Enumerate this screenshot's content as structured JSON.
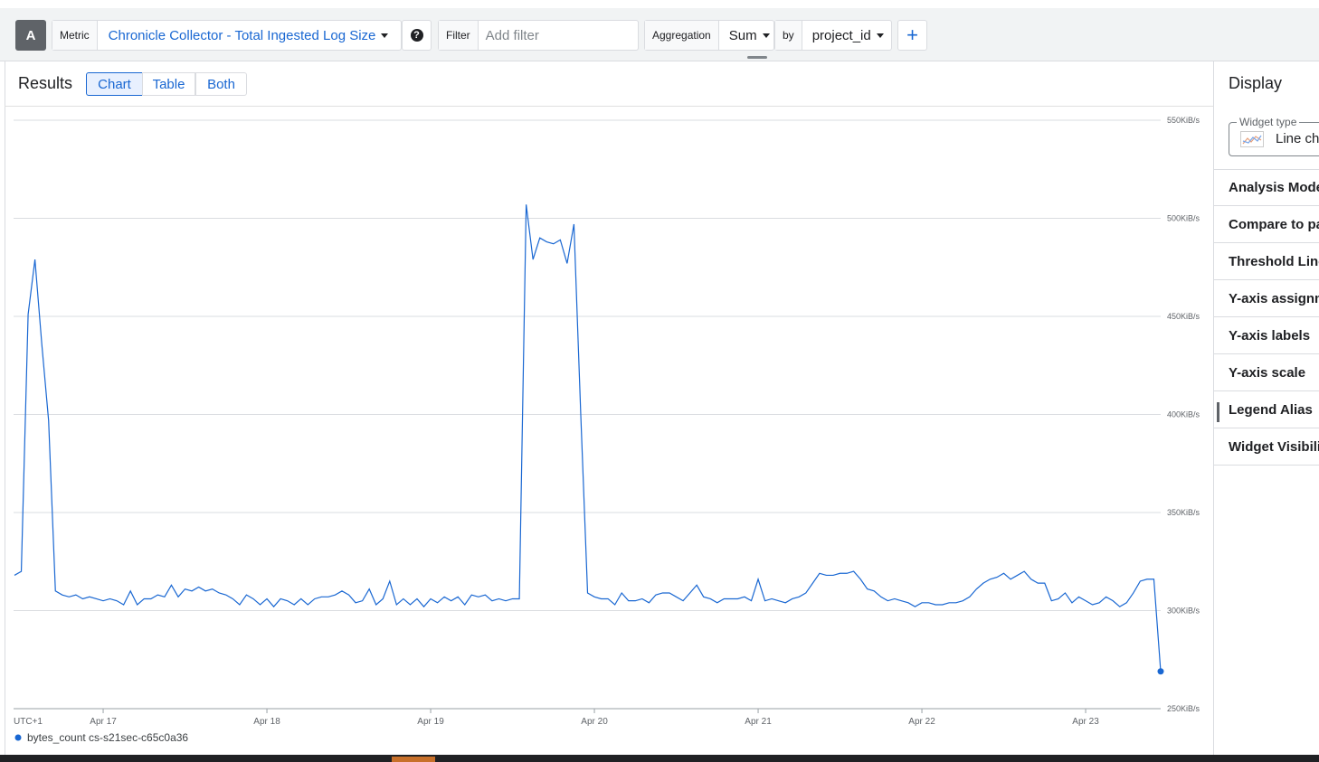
{
  "toolbar": {
    "query_label": "A",
    "metric_label": "Metric",
    "metric": "Chronicle Collector - Total Ingested Log Size",
    "filter_label": "Filter",
    "filter_placeholder": "Add filter",
    "aggregation_label": "Aggregation",
    "aggregation": "Sum",
    "by_label": "by",
    "group_by": "project_id"
  },
  "results": {
    "title": "Results",
    "tabs": [
      "Chart",
      "Table",
      "Both"
    ],
    "selected_tab": 0
  },
  "chart_data": {
    "type": "line",
    "x_axis_note": "UTC+1",
    "categories": [
      null,
      null,
      null,
      null,
      null,
      null,
      null,
      null,
      null,
      null,
      null,
      null,
      null,
      "Apr 17",
      null,
      null,
      null,
      null,
      null,
      null,
      null,
      null,
      null,
      null,
      null,
      null,
      null,
      null,
      null,
      null,
      null,
      null,
      null,
      null,
      null,
      null,
      null,
      "Apr 18",
      null,
      null,
      null,
      null,
      null,
      null,
      null,
      null,
      null,
      null,
      null,
      null,
      null,
      null,
      null,
      null,
      null,
      null,
      null,
      null,
      null,
      null,
      null,
      "Apr 19",
      null,
      null,
      null,
      null,
      null,
      null,
      null,
      null,
      null,
      null,
      null,
      null,
      null,
      null,
      null,
      null,
      null,
      null,
      null,
      null,
      null,
      null,
      null,
      "Apr 20",
      null,
      null,
      null,
      null,
      null,
      null,
      null,
      null,
      null,
      null,
      null,
      null,
      null,
      null,
      null,
      null,
      null,
      null,
      null,
      null,
      null,
      null,
      null,
      "Apr 21",
      null,
      null,
      null,
      null,
      null,
      null,
      null,
      null,
      null,
      null,
      null,
      null,
      null,
      null,
      null,
      null,
      null,
      null,
      null,
      null,
      null,
      null,
      null,
      "Apr 22",
      null,
      null,
      null,
      null,
      null,
      null,
      null,
      null,
      null,
      null,
      null,
      null,
      null,
      null,
      null,
      null,
      null,
      null,
      null,
      null,
      null,
      null,
      null,
      "Apr 23",
      null,
      null,
      null,
      null,
      null,
      null,
      null,
      null,
      null,
      null,
      null
    ],
    "series": [
      {
        "name": "bytes_count cs-s21sec-c65c0a36",
        "color": "#1967d2",
        "values": [
          318,
          320,
          451,
          479,
          436,
          397,
          310,
          308,
          307,
          308,
          306,
          307,
          306,
          305,
          306,
          305,
          303,
          310,
          303,
          306,
          306,
          308,
          307,
          313,
          307,
          311,
          310,
          312,
          310,
          311,
          309,
          308,
          306,
          303,
          308,
          306,
          303,
          306,
          302,
          306,
          305,
          303,
          306,
          303,
          306,
          307,
          307,
          308,
          310,
          308,
          304,
          305,
          311,
          303,
          306,
          315,
          303,
          306,
          303,
          306,
          302,
          306,
          304,
          307,
          305,
          307,
          303,
          308,
          307,
          308,
          305,
          306,
          305,
          306,
          306,
          507,
          479,
          490,
          488,
          487,
          489,
          477,
          497,
          400,
          309,
          307,
          306,
          306,
          303,
          309,
          305,
          305,
          306,
          304,
          308,
          309,
          309,
          307,
          305,
          309,
          313,
          307,
          306,
          304,
          306,
          306,
          306,
          307,
          305,
          316,
          305,
          306,
          305,
          304,
          306,
          307,
          309,
          314,
          319,
          318,
          318,
          319,
          319,
          320,
          316,
          311,
          310,
          307,
          305,
          306,
          305,
          304,
          302,
          304,
          304,
          303,
          303,
          304,
          304,
          305,
          307,
          311,
          314,
          316,
          317,
          319,
          316,
          318,
          320,
          316,
          314,
          314,
          305,
          306,
          309,
          304,
          307,
          305,
          303,
          304,
          307,
          305,
          302,
          304,
          309,
          315,
          316,
          316,
          269
        ]
      }
    ],
    "ylim": [
      250,
      550
    ],
    "yticks": [
      {
        "value": 250,
        "label": "250KiB/s"
      },
      {
        "value": 300,
        "label": "300KiB/s"
      },
      {
        "value": 350,
        "label": "350KiB/s"
      },
      {
        "value": 400,
        "label": "400KiB/s"
      },
      {
        "value": 450,
        "label": "450KiB/s"
      },
      {
        "value": 500,
        "label": "500KiB/s"
      },
      {
        "value": 550,
        "label": "550KiB/s"
      }
    ],
    "grid": true
  },
  "display_panel": {
    "title": "Display",
    "widget_type_label": "Widget type",
    "widget_type": "Line chart",
    "sections": [
      "Analysis Mode",
      "Compare to past",
      "Threshold Line",
      "Y-axis assignment",
      "Y-axis labels",
      "Y-axis scale",
      "Legend Alias",
      "Widget Visibility"
    ]
  }
}
